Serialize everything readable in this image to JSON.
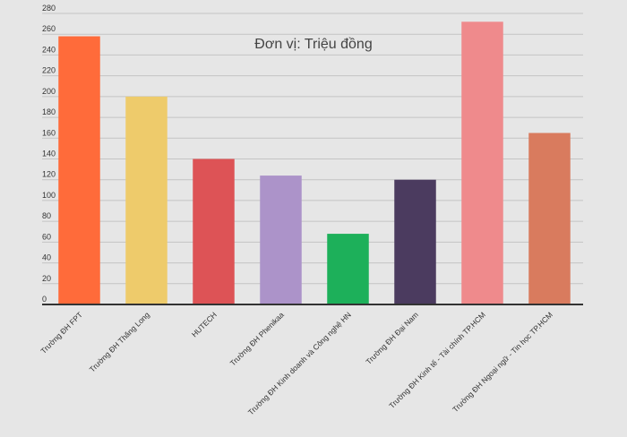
{
  "chart_data": {
    "type": "bar",
    "title": "Đơn vị: Triệu đồng",
    "categories": [
      "Trường ĐH FPT",
      "Trường ĐH Thăng Long",
      "HUTECH",
      "Trường ĐH Phenikaa",
      "Trường ĐH Kinh doanh và Công nghệ HN",
      "Trường ĐH Đại Nam",
      "Trường ĐH Kinh tế - Tài chính TP.HCM",
      "Trường ĐH Ngoại ngữ - Tin học TP.HCM"
    ],
    "values": [
      258,
      200,
      140,
      124,
      68,
      120,
      272,
      165
    ],
    "colors": [
      "#ff6b3a",
      "#eecb6b",
      "#dd5356",
      "#ac93c9",
      "#1db05a",
      "#4b3b5f",
      "#ef8a8c",
      "#d97b5e"
    ],
    "yticks": [
      0,
      20,
      40,
      60,
      80,
      100,
      120,
      140,
      160,
      180,
      200,
      220,
      240,
      260,
      280
    ],
    "ylim": [
      0,
      280
    ],
    "xlabel": "",
    "ylabel": "",
    "grid": true,
    "legend": "none"
  }
}
